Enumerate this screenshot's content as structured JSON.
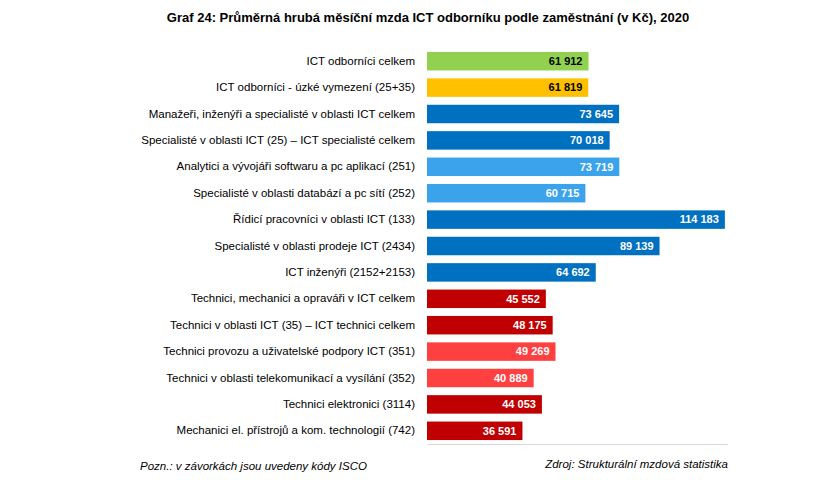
{
  "chart_data": {
    "type": "bar",
    "orientation": "horizontal",
    "title": "Graf 24: Průměrná hrubá měsíční mzda ICT odborníku podle zaměstnání (v Kč), 2020",
    "categories": [
      "ICT odborníci celkem",
      "ICT odborníci - úzké vymezení (25+35)",
      "Manažeři, inženýři a specialisté v oblasti ICT celkem",
      "Specialisté v oblasti ICT (25) – ICT specialisté celkem",
      "Analytici a vývojáři softwaru a pc aplikací (251)",
      "Specialisté v oblasti databází a pc sítí (252)",
      "Řídicí pracovníci v oblasti ICT (133)",
      "Specialisté v oblasti prodeje ICT (2434)",
      "ICT inženýři (2152+2153)",
      "Technici, mechanici a opraváři v ICT celkem",
      "Technici v oblasti ICT (35) – ICT technici celkem",
      "Technici provozu a uživatelské podpory ICT (351)",
      "Technici v oblasti telekomunikací a vysílání (352)",
      "Technici elektronici (3114)",
      "Mechanici el. přístrojů a kom. technologií (742)"
    ],
    "values": [
      61912,
      61819,
      73645,
      70018,
      73719,
      60715,
      114183,
      89139,
      64692,
      45552,
      48175,
      49269,
      40889,
      44053,
      36591
    ],
    "value_labels": [
      "61 912",
      "61 819",
      "73 645",
      "70 018",
      "73 719",
      "60 715",
      "114 183",
      "89 139",
      "64 692",
      "45 552",
      "48 175",
      "49 269",
      "40 889",
      "44 053",
      "36 591"
    ],
    "colors": [
      "#92d050",
      "#ffc000",
      "#0070c0",
      "#0070c0",
      "#3ba3ec",
      "#3ba3ec",
      "#0070c0",
      "#0070c0",
      "#0070c0",
      "#c00000",
      "#c00000",
      "#ff4040",
      "#ff4040",
      "#c00000",
      "#c00000"
    ],
    "xlim": [
      0,
      115000
    ],
    "xticks": [],
    "tick_labels": false,
    "grid": false,
    "data_labels": true,
    "note": "Pozn.: v závorkách jsou uvedeny kódy ISCO",
    "source": "Zdroj: Strukturální mzdová statistika"
  }
}
